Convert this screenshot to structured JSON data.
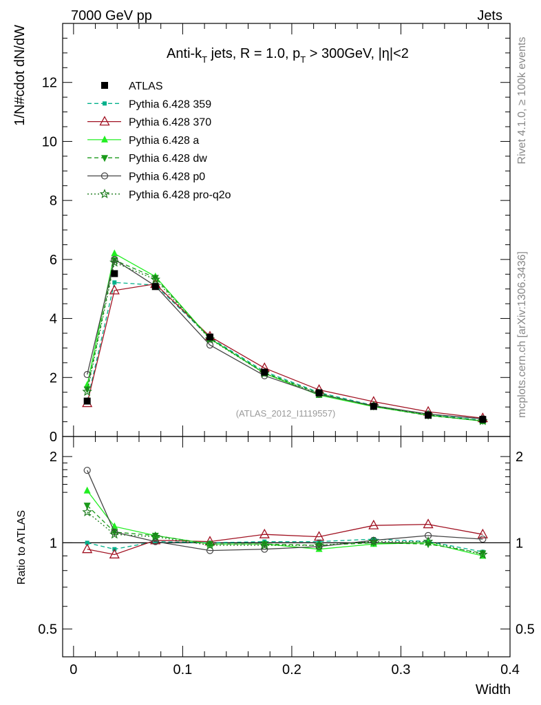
{
  "header": {
    "left": "7000 GeV pp",
    "right": "Jets"
  },
  "side_labels": {
    "rivet": "Rivet 4.1.0, ≥ 100k events",
    "mcplots": "mcplots.cern.ch [arXiv:1306.3436]"
  },
  "chart_data": [
    {
      "type": "line",
      "title": "Anti-kT jets, R = 1.0, pT > 300GeV, |η|<2",
      "title_parts": {
        "pre": "Anti-k",
        "sub1": "T",
        "mid": " jets, R = 1.0, p",
        "sub2": "T",
        "post": " > 300GeV, |η|<2"
      },
      "ylabel": "1/N#cdot dN/dW",
      "xlabel": "",
      "xlim": [
        -0.01,
        0.4
      ],
      "ylim": [
        0,
        14
      ],
      "yticks": [
        0,
        2,
        4,
        6,
        8,
        10,
        12
      ],
      "ytick_labels": [
        "0",
        "2",
        "4",
        "6",
        "8",
        "10",
        "12"
      ],
      "watermark": "(ATLAS_2012_I1119557)",
      "x": [
        0.0125,
        0.0375,
        0.075,
        0.125,
        0.175,
        0.225,
        0.275,
        0.325,
        0.375
      ],
      "series": [
        {
          "name": "ATLAS",
          "color": "#000000",
          "marker": "square-filled",
          "line": "none",
          "values": [
            1.2,
            5.52,
            5.08,
            3.37,
            2.18,
            1.48,
            1.02,
            0.72,
            0.58
          ]
        },
        {
          "name": "Pythia 6.428 359",
          "color": "#00b08a",
          "marker": "square-small",
          "line": "dashed",
          "values": [
            1.2,
            5.22,
            5.13,
            3.35,
            2.2,
            1.49,
            1.05,
            0.74,
            0.55
          ]
        },
        {
          "name": "Pythia 6.428 370",
          "color": "#a01020",
          "marker": "triangle-open",
          "line": "solid",
          "values": [
            1.13,
            4.95,
            5.17,
            3.39,
            2.32,
            1.58,
            1.18,
            0.84,
            0.62
          ]
        },
        {
          "name": "Pythia 6.428 a",
          "color": "#22ee22",
          "marker": "triangle-filled",
          "line": "solid",
          "values": [
            1.74,
            6.2,
            5.42,
            3.32,
            2.14,
            1.4,
            1.01,
            0.72,
            0.52
          ]
        },
        {
          "name": "Pythia 6.428 dw",
          "color": "#1a9a1a",
          "marker": "triangle-down-filled",
          "line": "dashed",
          "values": [
            1.6,
            5.98,
            5.38,
            3.32,
            2.16,
            1.46,
            1.02,
            0.71,
            0.53
          ]
        },
        {
          "name": "Pythia 6.428 p0",
          "color": "#444444",
          "marker": "circle-open",
          "line": "solid",
          "values": [
            2.1,
            6.0,
            5.1,
            3.1,
            2.06,
            1.43,
            1.04,
            0.76,
            0.6
          ]
        },
        {
          "name": "Pythia 6.428 pro-q2o",
          "color": "#1a7a1a",
          "marker": "star",
          "line": "dotted",
          "values": [
            1.52,
            5.9,
            5.32,
            3.3,
            2.14,
            1.45,
            1.03,
            0.73,
            0.53
          ]
        }
      ]
    },
    {
      "type": "line",
      "title": "",
      "ylabel": "Ratio to ATLAS",
      "xlabel": "Width",
      "xlim": [
        -0.01,
        0.4
      ],
      "ylim": [
        0.4,
        2.35
      ],
      "yscale": "log",
      "yticks": [
        0.5,
        1,
        2
      ],
      "ytick_labels": [
        "0.5",
        "1",
        "2"
      ],
      "xticks": [
        0,
        0.1,
        0.2,
        0.3,
        0.4
      ],
      "xtick_labels": [
        "0",
        "0.1",
        "0.2",
        "0.3",
        "0.4"
      ],
      "x": [
        0.0125,
        0.0375,
        0.075,
        0.125,
        0.175,
        0.225,
        0.275,
        0.325,
        0.375
      ],
      "series": [
        {
          "name": "Pythia 6.428 359",
          "values": [
            1.0,
            0.95,
            1.01,
            1.0,
            1.01,
            1.01,
            1.03,
            1.01,
            0.93
          ]
        },
        {
          "name": "Pythia 6.428 370",
          "values": [
            0.95,
            0.91,
            1.02,
            1.01,
            1.07,
            1.05,
            1.15,
            1.16,
            1.07
          ]
        },
        {
          "name": "Pythia 6.428 a",
          "values": [
            1.52,
            1.14,
            1.06,
            0.99,
            0.99,
            0.95,
            0.99,
            1.0,
            0.9
          ]
        },
        {
          "name": "Pythia 6.428 dw",
          "values": [
            1.35,
            1.09,
            1.06,
            0.99,
            0.99,
            0.98,
            1.0,
            0.99,
            0.92
          ]
        },
        {
          "name": "Pythia 6.428 p0",
          "values": [
            1.79,
            1.09,
            1.01,
            0.94,
            0.95,
            0.97,
            1.02,
            1.06,
            1.03
          ]
        },
        {
          "name": "Pythia 6.428 pro-q2o",
          "values": [
            1.28,
            1.07,
            1.05,
            0.98,
            0.98,
            0.98,
            1.01,
            1.01,
            0.91
          ]
        }
      ]
    }
  ]
}
